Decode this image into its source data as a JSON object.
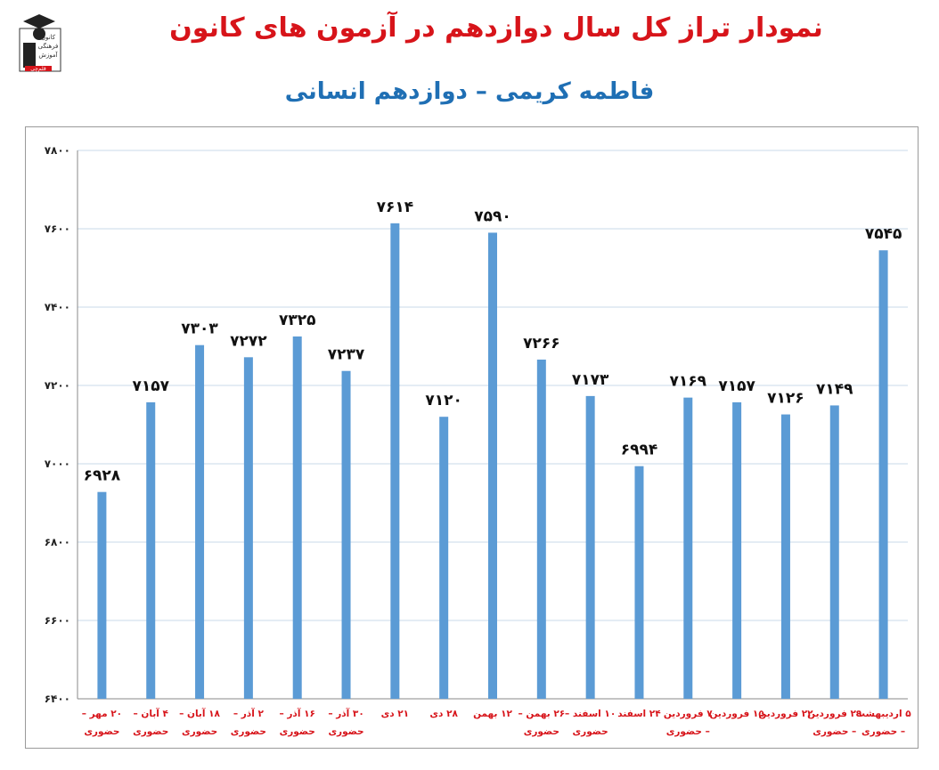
{
  "header": {
    "title": "نمودار تراز کل سال دوازدهم در آزمون های کانون",
    "subtitle": "فاطمه کریمی – دوازدهم انسانی"
  },
  "logo": {
    "icon": "kanoon-logo-icon",
    "text": [
      "کانون",
      "فرهنگی",
      "آموزش",
      "قلم‌چی"
    ]
  },
  "colors": {
    "bar": "#5b9bd5",
    "title": "#d7141a",
    "subtitle": "#1f6fb4",
    "xlabel": "#d7141a",
    "grid": "#c9d9ea"
  },
  "chart_data": {
    "type": "bar",
    "categories": [
      [
        "۲۰ مهر –",
        "حضوری"
      ],
      [
        "۴ آبان –",
        "حضوری"
      ],
      [
        "۱۸ آبان –",
        "حضوری"
      ],
      [
        "۲ آذر –",
        "حضوری"
      ],
      [
        "۱۶ آذر –",
        "حضوری"
      ],
      [
        "۳۰ آذر –",
        "حضوری"
      ],
      [
        "۲۱ دی"
      ],
      [
        "۲۸ دی"
      ],
      [
        "۱۲ بهمن"
      ],
      [
        "۲۶ بهمن –",
        "حضوری"
      ],
      [
        "۱۰ اسفند –",
        "حضوری"
      ],
      [
        "۲۴ اسفند"
      ],
      [
        "۷ فروردین",
        "– حضوری"
      ],
      [
        "۱۵ فروردین"
      ],
      [
        "۲۲ فروردین"
      ],
      [
        "۲۹ فروردین",
        "– حضوری"
      ],
      [
        "۵ اردیبهشت",
        "– حضوری"
      ]
    ],
    "values": [
      6928,
      7157,
      7303,
      7272,
      7325,
      7237,
      7614,
      7120,
      7590,
      7266,
      7173,
      6994,
      7169,
      7157,
      7126,
      7149,
      7545
    ],
    "value_labels": [
      "۶۹۲۸",
      "۷۱۵۷",
      "۷۳۰۳",
      "۷۲۷۲",
      "۷۳۲۵",
      "۷۲۳۷",
      "۷۶۱۴",
      "۷۱۲۰",
      "۷۵۹۰",
      "۷۲۶۶",
      "۷۱۷۳",
      "۶۹۹۴",
      "۷۱۶۹",
      "۷۱۵۷",
      "۷۱۲۶",
      "۷۱۴۹",
      "۷۵۴۵"
    ],
    "ylim": [
      6400,
      7800
    ],
    "yticks": [
      6400,
      6600,
      6800,
      7000,
      7200,
      7400,
      7600,
      7800
    ],
    "ytick_labels": [
      "۶۴۰۰",
      "۶۶۰۰",
      "۶۸۰۰",
      "۷۰۰۰",
      "۷۲۰۰",
      "۷۴۰۰",
      "۷۶۰۰",
      "۷۸۰۰"
    ],
    "grid": true,
    "legend": "none"
  }
}
